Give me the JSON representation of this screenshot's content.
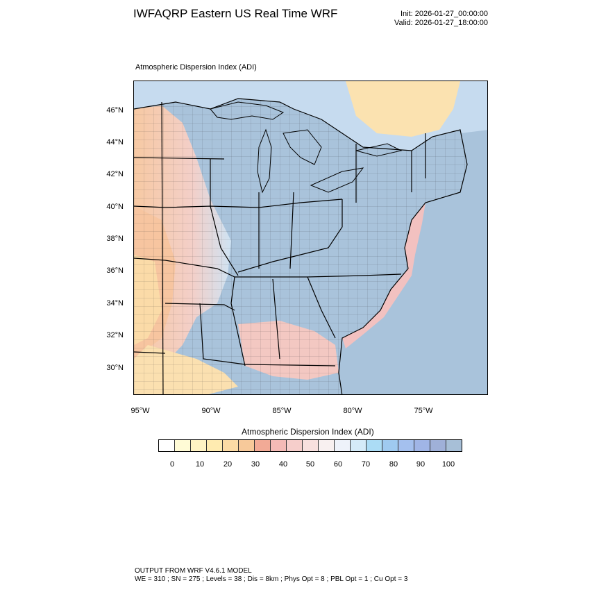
{
  "header": {
    "title": "IWFAQRP Eastern US Real Time WRF",
    "init": "Init: 2026-01-27_00:00:00",
    "valid": "Valid: 2026-01-27_18:00:00"
  },
  "map": {
    "subtitle": "Atmospheric Dispersion Index   (ADI)",
    "latitude_labels": [
      "46°N",
      "44°N",
      "42°N",
      "40°N",
      "38°N",
      "36°N",
      "34°N",
      "32°N",
      "30°N"
    ],
    "longitude_labels": [
      "95°W",
      "90°W",
      "85°W",
      "80°W",
      "75°W"
    ],
    "colors": {
      "ocean": "#a9c3db",
      "low_adi": "#f6d6b5",
      "mid_adi": "#f3c2c0",
      "high_adi": "#a9c3db",
      "canada": "#fbe2b0"
    }
  },
  "colorbar": {
    "title": "Atmospheric Dispersion Index  (ADI)",
    "tick_labels": [
      "0",
      "10",
      "20",
      "30",
      "40",
      "50",
      "60",
      "70",
      "80",
      "90",
      "100"
    ],
    "colors": [
      "#ffffff",
      "#fffbd6",
      "#fff3c4",
      "#ffebb0",
      "#fcdba5",
      "#f7c99a",
      "#f2aa96",
      "#f4bab6",
      "#f6cecb",
      "#f8e0de",
      "#f8f0f0",
      "#eef2fa",
      "#d4ebf8",
      "#abdcf5",
      "#9fcaf0",
      "#a4c0ee",
      "#a0b5e6",
      "#9fb0d8",
      "#a7bfd7"
    ]
  },
  "footer": {
    "line1": "OUTPUT FROM WRF V4.6.1 MODEL",
    "line2": "WE = 310 ; SN = 275 ; Levels = 38 ; Dis = 8km ; Phys Opt = 8 ; PBL Opt = 1 ; Cu Opt = 3"
  }
}
